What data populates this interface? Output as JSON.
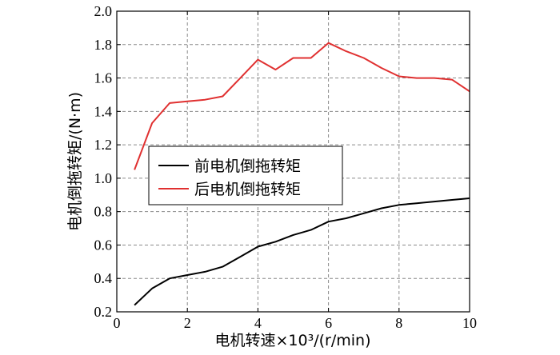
{
  "chart_data": {
    "type": "line",
    "title": "",
    "xlabel": "电机转速×10³/(r/min)",
    "ylabel": "电机倒拖转矩/(N·m)",
    "xlim": [
      0,
      10
    ],
    "ylim": [
      0.2,
      2.0
    ],
    "x_ticks": [
      "0",
      "2",
      "4",
      "6",
      "8",
      "10"
    ],
    "y_ticks": [
      "0.2",
      "0.4",
      "0.6",
      "0.8",
      "1.0",
      "1.2",
      "1.4",
      "1.6",
      "1.8",
      "2.0"
    ],
    "grid": true,
    "legend_position": "center-left",
    "series": [
      {
        "name": "前电机倒拖转矩",
        "color": "#000000",
        "x": [
          0.5,
          1.0,
          1.5,
          2.0,
          2.5,
          3.0,
          3.5,
          4.0,
          4.5,
          5.0,
          5.5,
          6.0,
          6.5,
          7.0,
          7.5,
          8.0,
          8.5,
          9.0,
          9.5,
          10.0
        ],
        "y": [
          0.24,
          0.34,
          0.4,
          0.42,
          0.44,
          0.47,
          0.53,
          0.59,
          0.62,
          0.66,
          0.69,
          0.74,
          0.76,
          0.79,
          0.82,
          0.84,
          0.85,
          0.86,
          0.87,
          0.88
        ]
      },
      {
        "name": "后电机倒拖转矩",
        "color": "#e03030",
        "x": [
          0.5,
          1.0,
          1.5,
          2.0,
          2.5,
          3.0,
          3.5,
          4.0,
          4.5,
          5.0,
          5.5,
          6.0,
          6.5,
          7.0,
          7.5,
          8.0,
          8.5,
          9.0,
          9.5,
          10.0
        ],
        "y": [
          1.05,
          1.33,
          1.45,
          1.46,
          1.47,
          1.49,
          1.6,
          1.71,
          1.65,
          1.72,
          1.72,
          1.81,
          1.76,
          1.72,
          1.66,
          1.61,
          1.6,
          1.6,
          1.59,
          1.52
        ]
      }
    ]
  }
}
